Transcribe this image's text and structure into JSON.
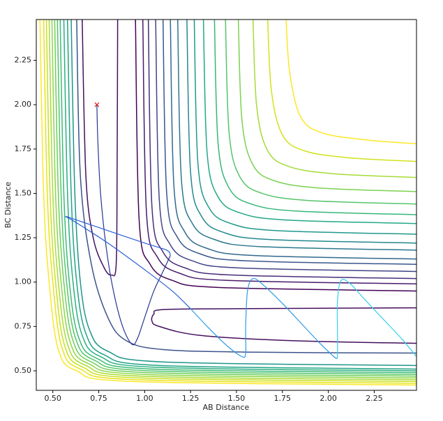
{
  "chart_data": {
    "type": "contour",
    "x_label": "AB Distance",
    "y_label": "BC Distance",
    "xlim": [
      0.41,
      2.48
    ],
    "ylim": [
      0.39,
      2.48
    ],
    "xticks": [
      {
        "value": 0.5,
        "label": "0.50"
      },
      {
        "value": 0.75,
        "label": "0.75"
      },
      {
        "value": 1.0,
        "label": "1.00"
      },
      {
        "value": 1.25,
        "label": "1.25"
      },
      {
        "value": 1.5,
        "label": "1.50"
      },
      {
        "value": 1.75,
        "label": "1.75"
      },
      {
        "value": 2.0,
        "label": "2.00"
      },
      {
        "value": 2.25,
        "label": "2.25"
      }
    ],
    "yticks": [
      {
        "value": 0.5,
        "label": "0.50"
      },
      {
        "value": 0.75,
        "label": "0.75"
      },
      {
        "value": 1.0,
        "label": "1.00"
      },
      {
        "value": 1.25,
        "label": "1.25"
      },
      {
        "value": 1.5,
        "label": "1.50"
      },
      {
        "value": 1.75,
        "label": "1.75"
      },
      {
        "value": 2.0,
        "label": "2.00"
      },
      {
        "value": 2.25,
        "label": "2.25"
      }
    ],
    "contours": [
      {
        "color": "#fde725",
        "x": [
          1.77,
          1.79,
          1.85,
          1.97,
          2.22,
          2.48
        ],
        "y": [
          2.48,
          2.18,
          1.93,
          1.84,
          1.8,
          1.78
        ]
      },
      {
        "color": "#d2e21b",
        "x": [
          1.67,
          1.69,
          1.75,
          1.87,
          2.12,
          2.48
        ],
        "y": [
          2.48,
          2.08,
          1.83,
          1.74,
          1.7,
          1.68
        ]
      },
      {
        "color": "#a5db36",
        "x": [
          1.59,
          1.61,
          1.67,
          1.79,
          2.04,
          2.48
        ],
        "y": [
          2.48,
          1.99,
          1.74,
          1.65,
          1.61,
          1.59
        ]
      },
      {
        "color": "#7ad151",
        "x": [
          1.51,
          1.53,
          1.59,
          1.71,
          1.96,
          2.48
        ],
        "y": [
          2.48,
          1.91,
          1.66,
          1.57,
          1.53,
          1.51
        ]
      },
      {
        "color": "#54c568",
        "x": [
          1.44,
          1.46,
          1.52,
          1.64,
          1.89,
          2.48
        ],
        "y": [
          2.48,
          1.84,
          1.59,
          1.5,
          1.46,
          1.44
        ]
      },
      {
        "color": "#35b779",
        "x": [
          1.38,
          1.4,
          1.46,
          1.58,
          1.83,
          2.48
        ],
        "y": [
          2.48,
          1.78,
          1.53,
          1.44,
          1.4,
          1.38
        ]
      },
      {
        "color": "#22a884",
        "x": [
          1.32,
          1.34,
          1.4,
          1.52,
          1.77,
          2.48
        ],
        "y": [
          2.48,
          1.73,
          1.48,
          1.39,
          1.35,
          1.33
        ]
      },
      {
        "color": "#1f988b",
        "x": [
          1.27,
          1.29,
          1.35,
          1.47,
          1.72,
          2.48
        ],
        "y": [
          2.48,
          1.67,
          1.42,
          1.33,
          1.29,
          1.27
        ]
      },
      {
        "color": "#23888e",
        "x": [
          1.23,
          1.25,
          1.31,
          1.43,
          1.68,
          2.48
        ],
        "y": [
          2.48,
          1.62,
          1.37,
          1.28,
          1.24,
          1.22
        ]
      },
      {
        "color": "#2a788e",
        "x": [
          1.18,
          1.2,
          1.26,
          1.38,
          1.63,
          2.48
        ],
        "y": [
          2.48,
          1.58,
          1.33,
          1.24,
          1.2,
          1.18
        ]
      },
      {
        "color": "#31688e",
        "x": [
          1.14,
          1.16,
          1.22,
          1.34,
          1.59,
          2.48
        ],
        "y": [
          2.48,
          1.53,
          1.28,
          1.19,
          1.15,
          1.13
        ]
      },
      {
        "color": "#39568c",
        "x": [
          1.1,
          1.12,
          1.18,
          1.3,
          1.55,
          2.48
        ],
        "y": [
          2.48,
          1.5,
          1.25,
          1.16,
          1.12,
          1.1
        ]
      },
      {
        "color": "#414487",
        "x": [
          1.06,
          1.08,
          1.14,
          1.26,
          1.51,
          2.48
        ],
        "y": [
          2.48,
          1.46,
          1.21,
          1.12,
          1.08,
          1.06
        ]
      },
      {
        "color": "#472d7b",
        "x": [
          1.02,
          1.04,
          1.1,
          1.22,
          1.47,
          2.48
        ],
        "y": [
          2.48,
          1.42,
          1.17,
          1.08,
          1.04,
          1.02
        ]
      },
      {
        "color": "#481a6c",
        "x": [
          0.99,
          1.01,
          1.07,
          1.19,
          1.44,
          2.48
        ],
        "y": [
          2.48,
          1.39,
          1.14,
          1.05,
          1.01,
          0.99
        ]
      },
      {
        "color": "#440154",
        "x": [
          0.95,
          0.97,
          1.03,
          1.15,
          1.4,
          2.48
        ],
        "y": [
          2.48,
          1.35,
          1.1,
          1.01,
          0.97,
          0.95
        ]
      },
      {
        "color": "#fde725",
        "x": [
          0.43,
          0.45,
          0.48,
          0.53,
          0.63,
          0.93,
          2.48
        ],
        "y": [
          2.48,
          1.5,
          1.0,
          0.62,
          0.5,
          0.44,
          0.42
        ]
      },
      {
        "color": "#e5e419",
        "x": [
          0.45,
          0.47,
          0.5,
          0.55,
          0.65,
          0.95,
          2.48
        ],
        "y": [
          2.48,
          1.5,
          1.0,
          0.63,
          0.51,
          0.45,
          0.43
        ]
      },
      {
        "color": "#c8e020",
        "x": [
          0.465,
          0.485,
          0.515,
          0.565,
          0.665,
          0.965,
          2.48
        ],
        "y": [
          2.48,
          1.5,
          1.0,
          0.64,
          0.52,
          0.46,
          0.44
        ]
      },
      {
        "color": "#a8db34",
        "x": [
          0.48,
          0.5,
          0.53,
          0.58,
          0.68,
          0.98,
          2.48
        ],
        "y": [
          2.48,
          1.5,
          1.0,
          0.65,
          0.53,
          0.47,
          0.45
        ]
      },
      {
        "color": "#8bd646",
        "x": [
          0.495,
          0.515,
          0.545,
          0.595,
          0.695,
          0.995,
          2.48
        ],
        "y": [
          2.48,
          1.5,
          1.0,
          0.66,
          0.54,
          0.48,
          0.46
        ]
      },
      {
        "color": "#6ece58",
        "x": [
          0.51,
          0.53,
          0.56,
          0.61,
          0.71,
          1.01,
          2.48
        ],
        "y": [
          2.48,
          1.5,
          1.0,
          0.67,
          0.55,
          0.49,
          0.47
        ]
      },
      {
        "color": "#52c569",
        "x": [
          0.525,
          0.545,
          0.575,
          0.625,
          0.725,
          1.025,
          2.48
        ],
        "y": [
          2.48,
          1.5,
          1.0,
          0.68,
          0.56,
          0.5,
          0.48
        ]
      },
      {
        "color": "#3aba76",
        "x": [
          0.54,
          0.56,
          0.59,
          0.64,
          0.74,
          1.04,
          2.48
        ],
        "y": [
          2.48,
          1.5,
          1.0,
          0.69,
          0.57,
          0.51,
          0.49
        ]
      },
      {
        "color": "#29af7f",
        "x": [
          0.56,
          0.58,
          0.61,
          0.66,
          0.76,
          1.06,
          2.48
        ],
        "y": [
          2.48,
          1.5,
          1.0,
          0.7,
          0.58,
          0.52,
          0.5
        ]
      },
      {
        "color": "#20a386",
        "x": [
          0.58,
          0.6,
          0.63,
          0.68,
          0.78,
          1.08,
          2.48
        ],
        "y": [
          2.48,
          1.5,
          1.0,
          0.71,
          0.59,
          0.53,
          0.51
        ]
      },
      {
        "color": "#1f958b",
        "x": [
          0.6,
          0.62,
          0.65,
          0.7,
          0.8,
          1.1,
          2.48
        ],
        "y": [
          2.48,
          1.5,
          1.0,
          0.73,
          0.61,
          0.55,
          0.53
        ]
      },
      {
        "color": "#3b528b",
        "x": [
          0.63,
          0.65,
          0.71,
          0.8,
          0.9,
          1.1,
          1.6,
          2.48
        ],
        "y": [
          2.48,
          1.6,
          1.1,
          0.8,
          0.67,
          0.62,
          0.605,
          0.6
        ]
      },
      {
        "color": "#440f5e",
        "x": [
          0.66,
          0.68,
          0.72,
          0.78,
          0.82,
          0.845,
          0.85,
          0.853
        ],
        "y": [
          2.48,
          1.6,
          1.25,
          1.08,
          1.04,
          1.1,
          1.6,
          2.48
        ]
      },
      {
        "color": "#440f5e",
        "x": [
          2.48,
          1.5,
          1.1,
          1.05,
          1.04,
          1.08,
          1.3,
          1.8,
          2.48
        ],
        "y": [
          0.855,
          0.85,
          0.845,
          0.82,
          0.78,
          0.75,
          0.7,
          0.67,
          0.655
        ]
      }
    ],
    "series": [
      {
        "color": "#283593",
        "x": [
          0.74,
          0.745,
          0.76,
          0.79,
          0.83,
          0.88,
          0.93,
          0.96,
          1.0,
          1.05,
          1.1,
          1.14
        ],
        "y": [
          2.0,
          1.8,
          1.5,
          1.2,
          0.95,
          0.75,
          0.65,
          0.68,
          0.8,
          0.95,
          1.06,
          1.15
        ]
      },
      {
        "color": "#2a5fd6",
        "x": [
          1.14,
          1.12,
          1.0,
          0.8,
          0.63,
          0.57,
          0.62,
          0.8,
          1.0,
          1.15,
          1.25
        ],
        "y": [
          1.15,
          1.18,
          1.22,
          1.29,
          1.35,
          1.37,
          1.34,
          1.22,
          1.07,
          0.95,
          0.85
        ]
      },
      {
        "color": "#2c9ae8",
        "x": [
          1.25,
          1.35,
          1.45,
          1.53,
          1.55,
          1.55,
          1.56,
          1.59,
          1.65,
          1.75,
          1.85,
          1.95,
          2.03,
          2.05
        ],
        "y": [
          0.85,
          0.74,
          0.64,
          0.58,
          0.6,
          0.75,
          0.95,
          1.02,
          0.98,
          0.88,
          0.77,
          0.66,
          0.58,
          0.57
        ]
      },
      {
        "color": "#33d0ee",
        "x": [
          2.05,
          2.05,
          2.05,
          2.07,
          2.12,
          2.2,
          2.3,
          2.4,
          2.48
        ],
        "y": [
          0.57,
          0.7,
          0.9,
          1.01,
          0.99,
          0.9,
          0.79,
          0.68,
          0.58
        ]
      }
    ],
    "marker": {
      "x": 0.74,
      "y": 2.0,
      "color": "#e41a1c"
    }
  }
}
